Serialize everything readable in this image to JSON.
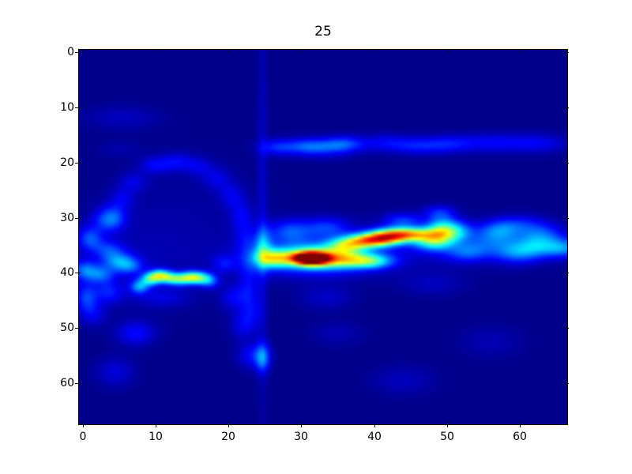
{
  "colors": {
    "figure_background": "#ffffff",
    "axes_frame": "#000000",
    "tick_label_color": "#000000",
    "colormap_min": "#000080",
    "colormap_max": "#800000"
  },
  "chart_data": {
    "type": "heatmap",
    "title": "25",
    "xlabel": "",
    "ylabel": "",
    "colormap": "jet",
    "grid": false,
    "legend": "none",
    "x_ticks": [
      0,
      10,
      20,
      30,
      40,
      50,
      60
    ],
    "y_ticks": [
      0,
      10,
      20,
      30,
      40,
      50,
      60
    ],
    "x_extent": [
      -0.5,
      66.5
    ],
    "y_extent": [
      -0.5,
      67.5
    ],
    "y_inverted": true,
    "grid_cols": 67,
    "grid_rows": 68,
    "value_range": [
      0,
      1
    ],
    "background_value": 0.01,
    "blob_format": [
      "x_center",
      "y_center",
      "sigma_x",
      "sigma_y",
      "amplitude"
    ],
    "blobs": [
      [
        31.3,
        37.4,
        1.6,
        0.75,
        1.0
      ],
      [
        31.5,
        37.2,
        3.2,
        1.4,
        0.4
      ],
      [
        32.0,
        37.2,
        6.5,
        2.3,
        0.18
      ],
      [
        26.3,
        37.4,
        1.6,
        1.1,
        0.38
      ],
      [
        24.8,
        35.5,
        0.9,
        2.5,
        0.22
      ],
      [
        36.4,
        37.7,
        2.6,
        1.0,
        0.32
      ],
      [
        39.8,
        37.9,
        2.0,
        0.9,
        0.26
      ],
      [
        36.1,
        35.2,
        1.8,
        1.0,
        0.33
      ],
      [
        39.2,
        34.2,
        2.2,
        0.85,
        0.55
      ],
      [
        41.8,
        33.6,
        2.0,
        0.9,
        0.4
      ],
      [
        44.6,
        33.0,
        2.9,
        0.85,
        0.58
      ],
      [
        47.9,
        34.4,
        1.8,
        1.1,
        0.3
      ],
      [
        49.3,
        32.3,
        1.5,
        1.6,
        0.38
      ],
      [
        51.5,
        32.5,
        1.5,
        1.3,
        0.2
      ],
      [
        52.8,
        36.2,
        2.2,
        1.3,
        0.18
      ],
      [
        56.5,
        33.8,
        2.5,
        1.6,
        0.15
      ],
      [
        57.2,
        32.2,
        1.8,
        1.2,
        0.12
      ],
      [
        60.0,
        31.2,
        2.5,
        1.2,
        0.12
      ],
      [
        59.5,
        36.3,
        2.2,
        1.4,
        0.2
      ],
      [
        62.5,
        35.2,
        2.0,
        1.4,
        0.2
      ],
      [
        63.0,
        33.0,
        2.2,
        1.3,
        0.15
      ],
      [
        66.0,
        35.5,
        1.8,
        1.2,
        0.22
      ],
      [
        44.0,
        30.6,
        1.8,
        1.0,
        0.16
      ],
      [
        49.0,
        29.0,
        1.5,
        0.9,
        0.12
      ],
      [
        33.5,
        31.8,
        2.2,
        1.3,
        0.15
      ],
      [
        28.5,
        32.5,
        2.0,
        1.5,
        0.17
      ],
      [
        46.0,
        35.0,
        12.0,
        2.8,
        0.05
      ],
      [
        26.5,
        17.2,
        1.6,
        1.0,
        0.12
      ],
      [
        30.8,
        17.0,
        2.4,
        1.0,
        0.16
      ],
      [
        35.8,
        16.6,
        1.9,
        1.0,
        0.16
      ],
      [
        33.0,
        17.5,
        3.0,
        1.2,
        0.09
      ],
      [
        41.5,
        16.4,
        2.5,
        1.1,
        0.1
      ],
      [
        46.0,
        17.0,
        2.5,
        1.1,
        0.11
      ],
      [
        50.5,
        16.6,
        2.6,
        1.1,
        0.12
      ],
      [
        56.5,
        16.4,
        2.8,
        1.2,
        0.1
      ],
      [
        62.5,
        16.5,
        2.8,
        1.2,
        0.1
      ],
      [
        24.7,
        27.0,
        0.45,
        26.0,
        0.06
      ],
      [
        24.7,
        55.5,
        0.7,
        1.8,
        0.2
      ],
      [
        23.3,
        55.0,
        1.4,
        1.6,
        0.12
      ],
      [
        4.3,
        29.5,
        1.2,
        1.6,
        0.09
      ],
      [
        5.5,
        26.5,
        1.2,
        1.4,
        0.08
      ],
      [
        7.0,
        23.5,
        1.3,
        1.2,
        0.08
      ],
      [
        10.0,
        20.5,
        1.5,
        1.1,
        0.1
      ],
      [
        13.0,
        19.8,
        1.5,
        1.1,
        0.1
      ],
      [
        16.0,
        20.8,
        1.4,
        1.2,
        0.08
      ],
      [
        18.5,
        23.0,
        1.3,
        1.4,
        0.08
      ],
      [
        20.5,
        26.0,
        1.2,
        1.6,
        0.08
      ],
      [
        21.8,
        29.5,
        1.1,
        1.8,
        0.09
      ],
      [
        22.3,
        33.5,
        1.0,
        2.0,
        0.08
      ],
      [
        22.8,
        38.0,
        1.0,
        2.0,
        0.07
      ],
      [
        22.8,
        42.5,
        1.0,
        2.2,
        0.09
      ],
      [
        23.2,
        47.0,
        1.0,
        2.2,
        0.09
      ],
      [
        22.0,
        49.5,
        1.2,
        1.8,
        0.09
      ],
      [
        20.8,
        44.5,
        1.3,
        1.6,
        0.1
      ],
      [
        19.5,
        38.4,
        1.1,
        1.1,
        0.1
      ],
      [
        3.5,
        30.5,
        1.5,
        1.5,
        0.16
      ],
      [
        1.0,
        33.8,
        1.2,
        1.5,
        0.18
      ],
      [
        3.5,
        35.8,
        1.5,
        1.2,
        0.14
      ],
      [
        4.8,
        37.9,
        1.5,
        1.2,
        0.2
      ],
      [
        6.5,
        38.8,
        1.3,
        1.1,
        0.16
      ],
      [
        0.3,
        39.5,
        1.2,
        1.3,
        0.2
      ],
      [
        2.5,
        40.3,
        1.3,
        1.1,
        0.18
      ],
      [
        0.5,
        44.5,
        1.0,
        1.8,
        0.16
      ],
      [
        3.5,
        43.5,
        1.5,
        1.5,
        0.13
      ],
      [
        1.5,
        47.5,
        1.2,
        1.5,
        0.09
      ],
      [
        7.3,
        51.0,
        1.8,
        1.5,
        0.12
      ],
      [
        4.5,
        58.0,
        1.8,
        1.8,
        0.08
      ],
      [
        5.5,
        11.8,
        3.5,
        1.5,
        0.05
      ],
      [
        5.0,
        17.5,
        2.0,
        1.0,
        0.03
      ],
      [
        8.0,
        38.0,
        6.0,
        6.0,
        0.03
      ],
      [
        14.0,
        30.0,
        8.0,
        8.0,
        0.02
      ],
      [
        7.8,
        42.5,
        0.9,
        0.9,
        0.25
      ],
      [
        9.3,
        41.2,
        0.9,
        0.8,
        0.33
      ],
      [
        10.6,
        40.5,
        1.0,
        0.75,
        0.42
      ],
      [
        12.0,
        41.0,
        1.0,
        0.75,
        0.3
      ],
      [
        13.5,
        41.2,
        1.0,
        0.75,
        0.3
      ],
      [
        14.9,
        40.8,
        1.0,
        0.75,
        0.36
      ],
      [
        16.2,
        41.0,
        1.0,
        0.8,
        0.3
      ],
      [
        17.5,
        41.5,
        0.9,
        0.9,
        0.18
      ],
      [
        11.0,
        44.5,
        2.5,
        1.2,
        0.07
      ],
      [
        44.0,
        59.5,
        3.0,
        1.8,
        0.05
      ],
      [
        35.0,
        51.0,
        2.5,
        1.5,
        0.04
      ],
      [
        56.0,
        52.5,
        3.0,
        2.0,
        0.04
      ],
      [
        33.5,
        44.5,
        2.5,
        1.5,
        0.06
      ],
      [
        48.0,
        42.0,
        3.0,
        1.5,
        0.05
      ]
    ]
  }
}
